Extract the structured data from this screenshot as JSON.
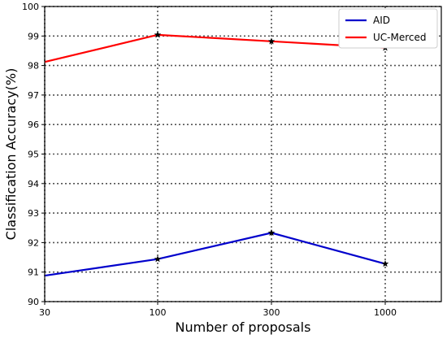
{
  "chart_data": {
    "type": "line",
    "categories": [
      "30",
      "100",
      "300",
      "1000"
    ],
    "series": [
      {
        "name": "AID",
        "color": "#0000cc",
        "values": [
          90.88,
          91.44,
          92.33,
          91.28
        ]
      },
      {
        "name": "UC-Merced",
        "color": "#ff0000",
        "values": [
          98.12,
          99.04,
          98.82,
          98.6
        ]
      }
    ],
    "xlabel": "Number of proposals",
    "ylabel": "Classification Accuracy(%)",
    "ylim": [
      90,
      100
    ],
    "yticks": [
      90,
      91,
      92,
      93,
      94,
      95,
      96,
      97,
      98,
      99,
      100
    ],
    "grid": true,
    "grid_style": "dotted",
    "marker": "star",
    "legend_position": "top-right"
  }
}
